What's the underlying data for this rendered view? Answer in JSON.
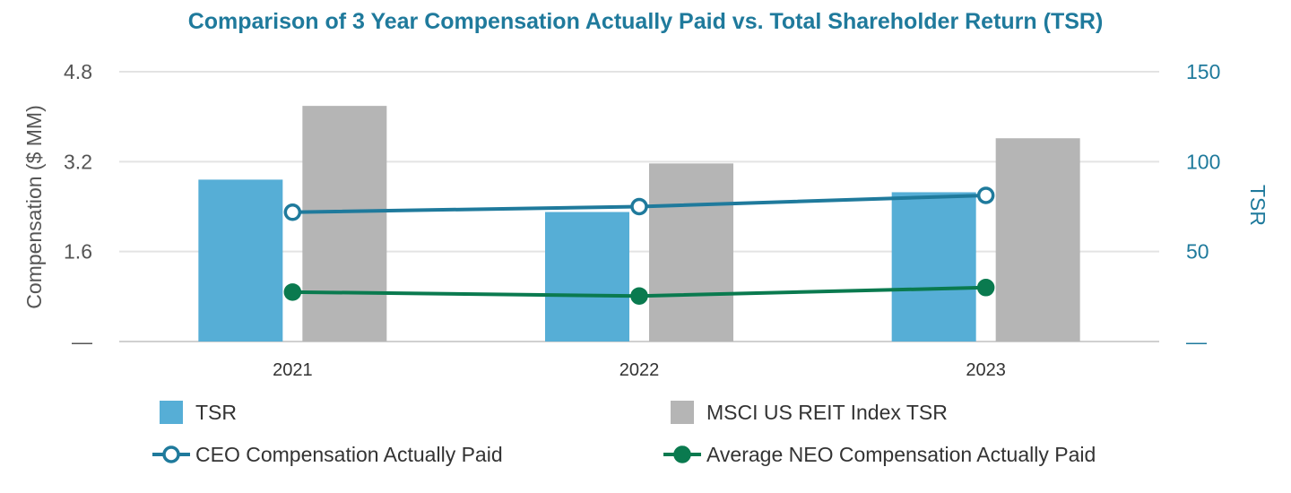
{
  "chart_data": {
    "type": "bar",
    "title": "Comparison of 3 Year Compensation Actually Paid vs. Total Shareholder Return (TSR)",
    "categories": [
      "2021",
      "2022",
      "2023"
    ],
    "ylabel_left": "Compensation ($ MM)",
    "ylabel_right": "TSR",
    "yticks_left": [
      "—",
      "1.6",
      "3.2",
      "4.8"
    ],
    "yticks_right": [
      "—",
      "50",
      "100",
      "150"
    ],
    "ylim_left": [
      0,
      4.8
    ],
    "ylim_right": [
      0,
      150
    ],
    "grid": true,
    "series": [
      {
        "name": "TSR",
        "kind": "bar",
        "axis": "right",
        "color": "#56aed6",
        "values": [
          90,
          72,
          83
        ]
      },
      {
        "name": "MSCI US REIT Index TSR",
        "kind": "bar",
        "axis": "right",
        "color": "#b5b5b5",
        "values": [
          131,
          99,
          113
        ]
      },
      {
        "name": "CEO Compensation Actually Paid",
        "kind": "line",
        "marker": "hollow-circle",
        "axis": "left",
        "color": "#1f7a9c",
        "values": [
          2.3,
          2.4,
          2.6
        ]
      },
      {
        "name": "Average NEO Compensation Actually Paid",
        "kind": "line",
        "marker": "filled-circle",
        "axis": "left",
        "color": "#0a7a4f",
        "values": [
          0.88,
          0.81,
          0.96
        ]
      }
    ],
    "legend_position": "bottom"
  }
}
